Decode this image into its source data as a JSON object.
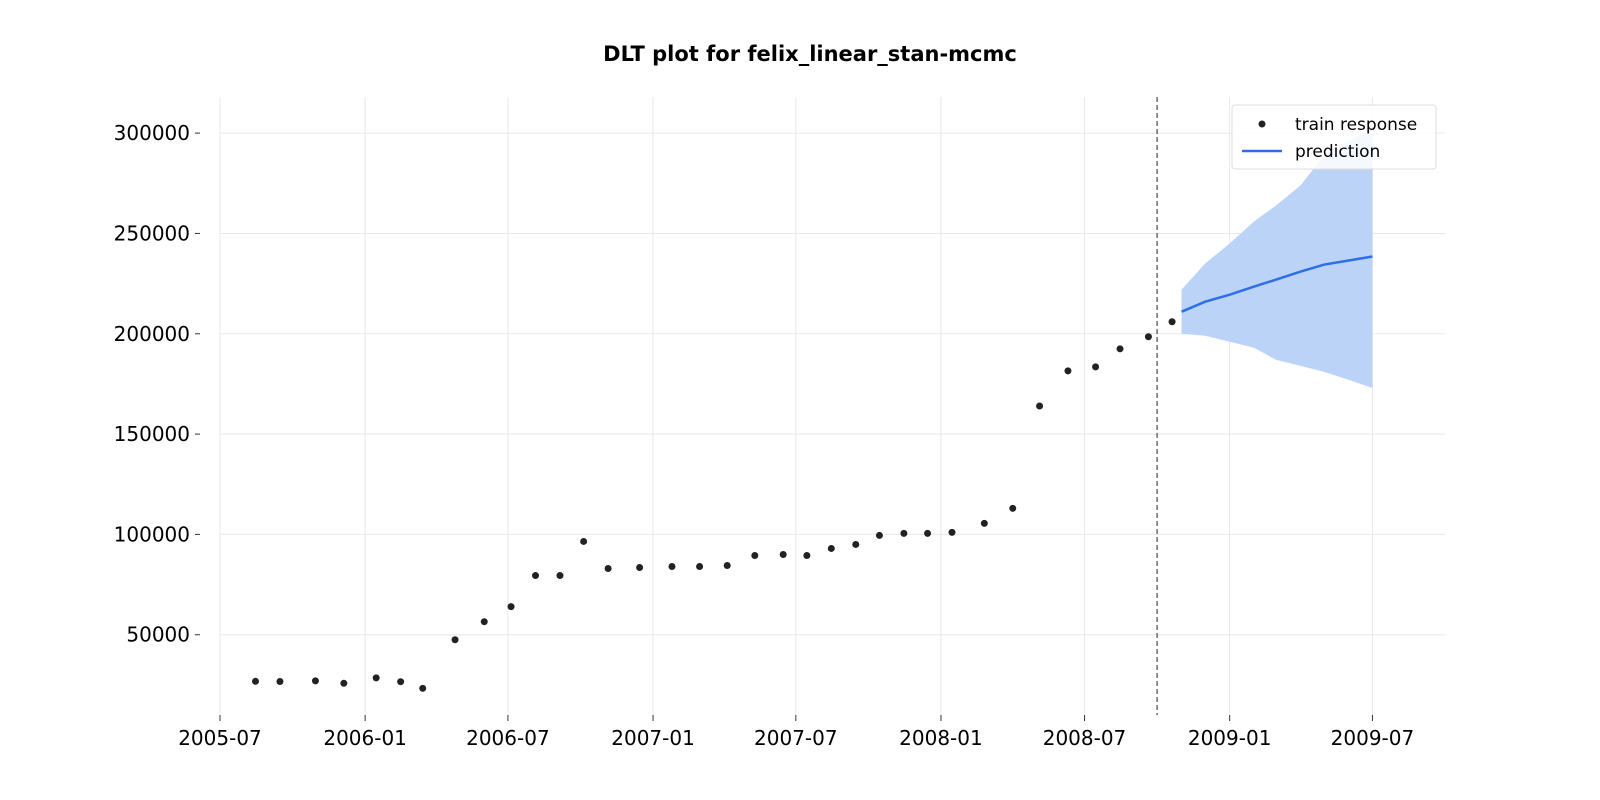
{
  "chart_data": {
    "type": "scatter",
    "title": "DLT plot for felix_linear_stan-mcmc",
    "xlabel": "",
    "ylabel": "",
    "x_axis_type": "date",
    "xlim": [
      "2005-07-01",
      "2009-10-01"
    ],
    "ylim": [
      10000,
      318000
    ],
    "grid": true,
    "legend_position": "top-right",
    "x_ticks": [
      "2005-07-01",
      "2006-01-01",
      "2006-07-01",
      "2007-01-01",
      "2007-07-01",
      "2008-01-01",
      "2008-07-01",
      "2009-01-01",
      "2009-07-01"
    ],
    "x_tick_labels": [
      "2005-07",
      "2006-01",
      "2006-07",
      "2007-01",
      "2007-07",
      "2008-01",
      "2008-07",
      "2009-01",
      "2009-07"
    ],
    "y_ticks": [
      50000,
      100000,
      150000,
      200000,
      250000,
      300000
    ],
    "y_tick_labels": [
      "50000",
      "100000",
      "150000",
      "200000",
      "250000",
      "300000"
    ],
    "train_split_date": "2008-10-01",
    "colors": {
      "train": "#222222",
      "prediction": "#2c6fe6",
      "band": "#bcd3f8",
      "split_line": "#555555"
    },
    "series": [
      {
        "name": "train response",
        "kind": "scatter",
        "points": [
          [
            "2005-08-15",
            26800
          ],
          [
            "2005-09-15",
            26700
          ],
          [
            "2005-10-30",
            27000
          ],
          [
            "2005-12-05",
            25800
          ],
          [
            "2006-01-15",
            28500
          ],
          [
            "2006-02-15",
            26600
          ],
          [
            "2006-03-15",
            23300
          ],
          [
            "2006-04-25",
            47500
          ],
          [
            "2006-06-01",
            56500
          ],
          [
            "2006-07-05",
            64000
          ],
          [
            "2006-08-05",
            79500
          ],
          [
            "2006-09-05",
            79500
          ],
          [
            "2006-10-05",
            96500
          ],
          [
            "2006-11-05",
            83000
          ],
          [
            "2006-12-15",
            83500
          ],
          [
            "2007-01-25",
            84000
          ],
          [
            "2007-03-01",
            84000
          ],
          [
            "2007-04-05",
            84500
          ],
          [
            "2007-05-10",
            89500
          ],
          [
            "2007-06-15",
            90000
          ],
          [
            "2007-07-15",
            89500
          ],
          [
            "2007-08-15",
            93000
          ],
          [
            "2007-09-15",
            95000
          ],
          [
            "2007-10-15",
            99500
          ],
          [
            "2007-11-15",
            100500
          ],
          [
            "2007-12-15",
            100500
          ],
          [
            "2008-01-15",
            101000
          ],
          [
            "2008-02-25",
            105500
          ],
          [
            "2008-04-01",
            113000
          ],
          [
            "2008-05-05",
            164000
          ],
          [
            "2008-06-10",
            181500
          ],
          [
            "2008-07-15",
            183500
          ],
          [
            "2008-08-15",
            192500
          ],
          [
            "2008-09-20",
            198500
          ],
          [
            "2008-10-20",
            206000
          ]
        ]
      },
      {
        "name": "prediction",
        "kind": "line",
        "points": [
          [
            "2008-11-01",
            211000
          ],
          [
            "2008-12-01",
            216000
          ],
          [
            "2009-01-01",
            219500
          ],
          [
            "2009-02-01",
            223500
          ],
          [
            "2009-03-01",
            227000
          ],
          [
            "2009-04-01",
            231000
          ],
          [
            "2009-05-01",
            234500
          ],
          [
            "2009-06-01",
            236500
          ],
          [
            "2009-07-01",
            238500
          ]
        ],
        "band_upper": [
          222000,
          235000,
          245000,
          256000,
          264000,
          274000,
          289000,
          296000,
          302000
        ],
        "band_lower": [
          200000,
          199000,
          196000,
          193000,
          187000,
          184000,
          181000,
          177000,
          173000
        ]
      }
    ]
  }
}
